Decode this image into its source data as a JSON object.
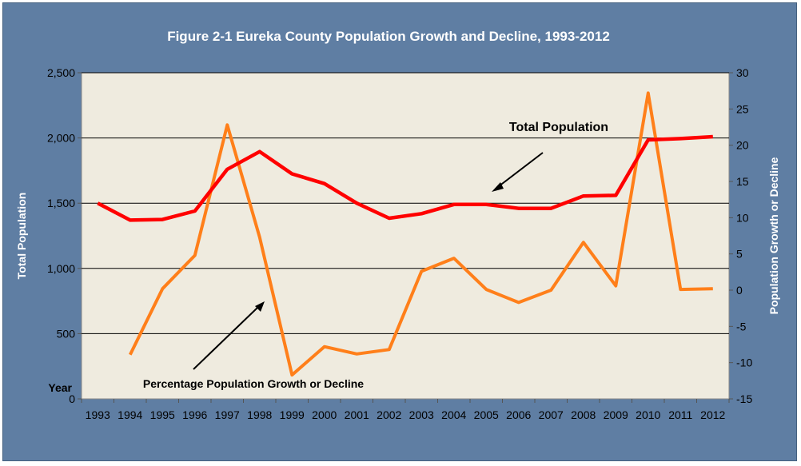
{
  "chart_data": {
    "type": "line",
    "title": "Figure 2-1 Eureka County Population Growth and Decline, 1993-2012",
    "x_title": "Year",
    "y_left_title": "Total Population",
    "y_right_title": "Population Growth or Decline",
    "x": [
      "1993",
      "1994",
      "1995",
      "1996",
      "1997",
      "1998",
      "1999",
      "2000",
      "2001",
      "2002",
      "2003",
      "2004",
      "2005",
      "2006",
      "2007",
      "2008",
      "2009",
      "2010",
      "2011",
      "2012"
    ],
    "y_left": {
      "range": [
        0,
        2500
      ],
      "ticks": [
        "0",
        "500",
        "1,000",
        "1,500",
        "2,000",
        "2,500"
      ],
      "tick_values": [
        0,
        500,
        1000,
        1500,
        2000,
        2500
      ]
    },
    "y_right": {
      "range": [
        -15,
        30
      ],
      "ticks": [
        "-15",
        "-10",
        "-5",
        "0",
        "5",
        "10",
        "15",
        "20",
        "25",
        "30"
      ],
      "tick_values": [
        -15,
        -10,
        -5,
        0,
        5,
        10,
        15,
        20,
        25,
        30
      ]
    },
    "grid": "horizontal",
    "series": [
      {
        "name": "Total Population",
        "axis": "left",
        "color": "#ff0000",
        "values": [
          1500,
          1370,
          1375,
          1440,
          1760,
          1895,
          1725,
          1650,
          1500,
          1385,
          1420,
          1490,
          1490,
          1460,
          1460,
          1555,
          1560,
          1985,
          1995,
          2010
        ]
      },
      {
        "name": "Percentage Population Growth or Decline",
        "axis": "right",
        "color": "#ff7f1a",
        "values": [
          null,
          -8.9,
          0.2,
          4.8,
          22.8,
          7.3,
          -11.7,
          -7.8,
          -8.8,
          -8.2,
          2.6,
          4.4,
          0.1,
          -1.7,
          0.0,
          6.6,
          0.6,
          27.2,
          0.1,
          0.2
        ]
      }
    ],
    "annotations": {
      "total_population": "Total Population",
      "percentage_growth": "Percentage Population Growth or Decline"
    }
  }
}
